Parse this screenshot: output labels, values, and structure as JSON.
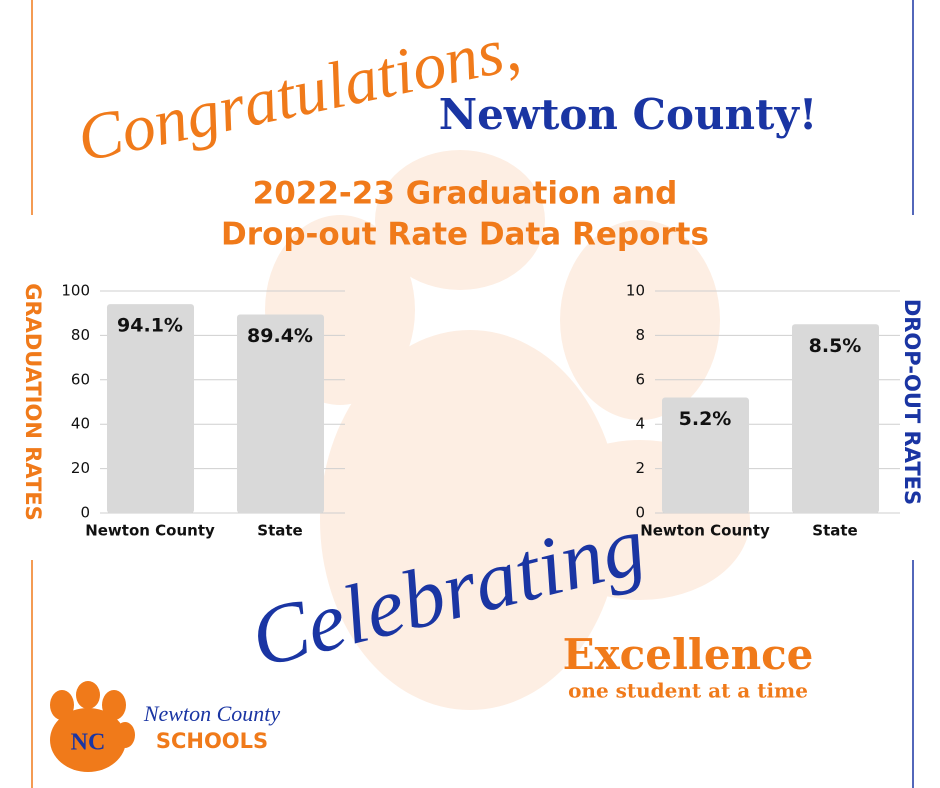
{
  "header": {
    "greeting": "Congratulations,",
    "county": "Newton County!",
    "title_line1": "2022-23 Graduation and",
    "title_line2": "Drop-out Rate Data Reports"
  },
  "chart_data": [
    {
      "type": "bar",
      "ylabel": "GRADUATION RATES",
      "categories": [
        "Newton County",
        "State"
      ],
      "values": [
        94.1,
        89.4
      ],
      "value_labels": [
        "94.1%",
        "89.4%"
      ],
      "color": "#d9d9d9",
      "ylim": [
        0,
        100
      ],
      "yticks": [
        0,
        20,
        40,
        60,
        80,
        100
      ],
      "grid": true,
      "label_color": "#f07a1a"
    },
    {
      "type": "bar",
      "ylabel": "DROP-OUT RATES",
      "categories": [
        "Newton County",
        "State"
      ],
      "values": [
        5.2,
        8.5
      ],
      "value_labels": [
        "5.2%",
        "8.5%"
      ],
      "color": "#d9d9d9",
      "ylim": [
        0,
        10
      ],
      "yticks": [
        0,
        2,
        4,
        6,
        8,
        10
      ],
      "grid": true,
      "label_color": "#1a35a3"
    }
  ],
  "footer": {
    "celebrating": "Celebrating",
    "excellence": "Excellence",
    "tagline": "one student at a time",
    "logo_initials": "NC",
    "logo_script": "Newton County",
    "logo_schools": "SCHOOLS"
  }
}
